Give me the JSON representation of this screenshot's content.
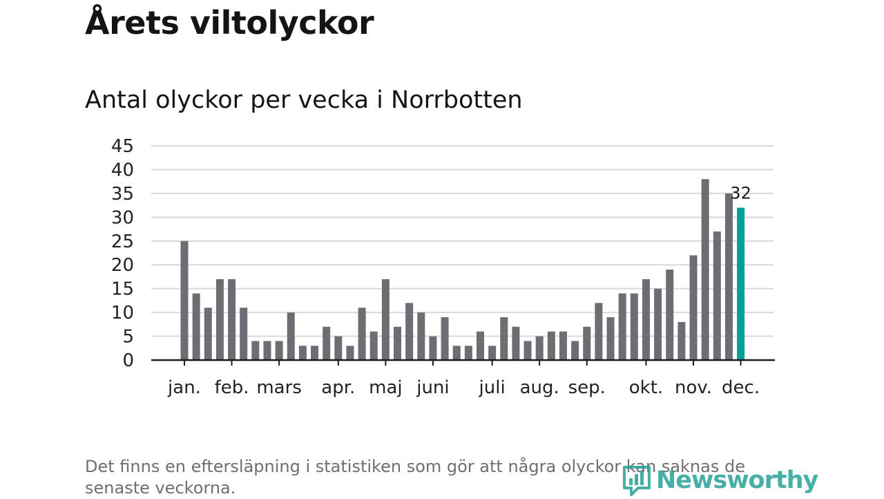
{
  "title": "Årets viltolyckor",
  "subtitle": "Antal olyckor per vecka i Norrbotten",
  "footnote": "Det finns en eftersläpning i statistiken som gör att några olyckor kan saknas de senaste veckorna.",
  "brand": {
    "name": "Newsworthy",
    "icon": "bar-chart-speech-icon"
  },
  "colors": {
    "bar": "#6e6d73",
    "highlight": "#00a096",
    "grid": "#d9d9d9",
    "axis": "#1a1a1a",
    "brand": "#1f9e93"
  },
  "chart_data": {
    "type": "bar",
    "title": "Antal olyckor per vecka i Norrbotten",
    "xlabel": "",
    "ylabel": "",
    "ylim": [
      0,
      45
    ],
    "yticks": [
      0,
      5,
      10,
      15,
      20,
      25,
      30,
      35,
      40,
      45
    ],
    "grid": true,
    "values": [
      25,
      14,
      11,
      17,
      17,
      11,
      4,
      4,
      4,
      10,
      3,
      3,
      7,
      5,
      3,
      11,
      6,
      17,
      7,
      12,
      10,
      5,
      9,
      3,
      3,
      6,
      3,
      9,
      7,
      4,
      5,
      6,
      6,
      4,
      7,
      12,
      9,
      14,
      14,
      17,
      15,
      19,
      8,
      22,
      38,
      27,
      35,
      32
    ],
    "highlight_index": 47,
    "highlight_label": "32",
    "months": [
      {
        "label": "jan.",
        "week": 0
      },
      {
        "label": "feb.",
        "week": 4
      },
      {
        "label": "mars",
        "week": 8
      },
      {
        "label": "apr.",
        "week": 13
      },
      {
        "label": "maj",
        "week": 17
      },
      {
        "label": "juni",
        "week": 21
      },
      {
        "label": "juli",
        "week": 26
      },
      {
        "label": "aug.",
        "week": 30
      },
      {
        "label": "sep.",
        "week": 34
      },
      {
        "label": "okt.",
        "week": 39
      },
      {
        "label": "nov.",
        "week": 43
      },
      {
        "label": "dec.",
        "week": 47
      }
    ]
  }
}
